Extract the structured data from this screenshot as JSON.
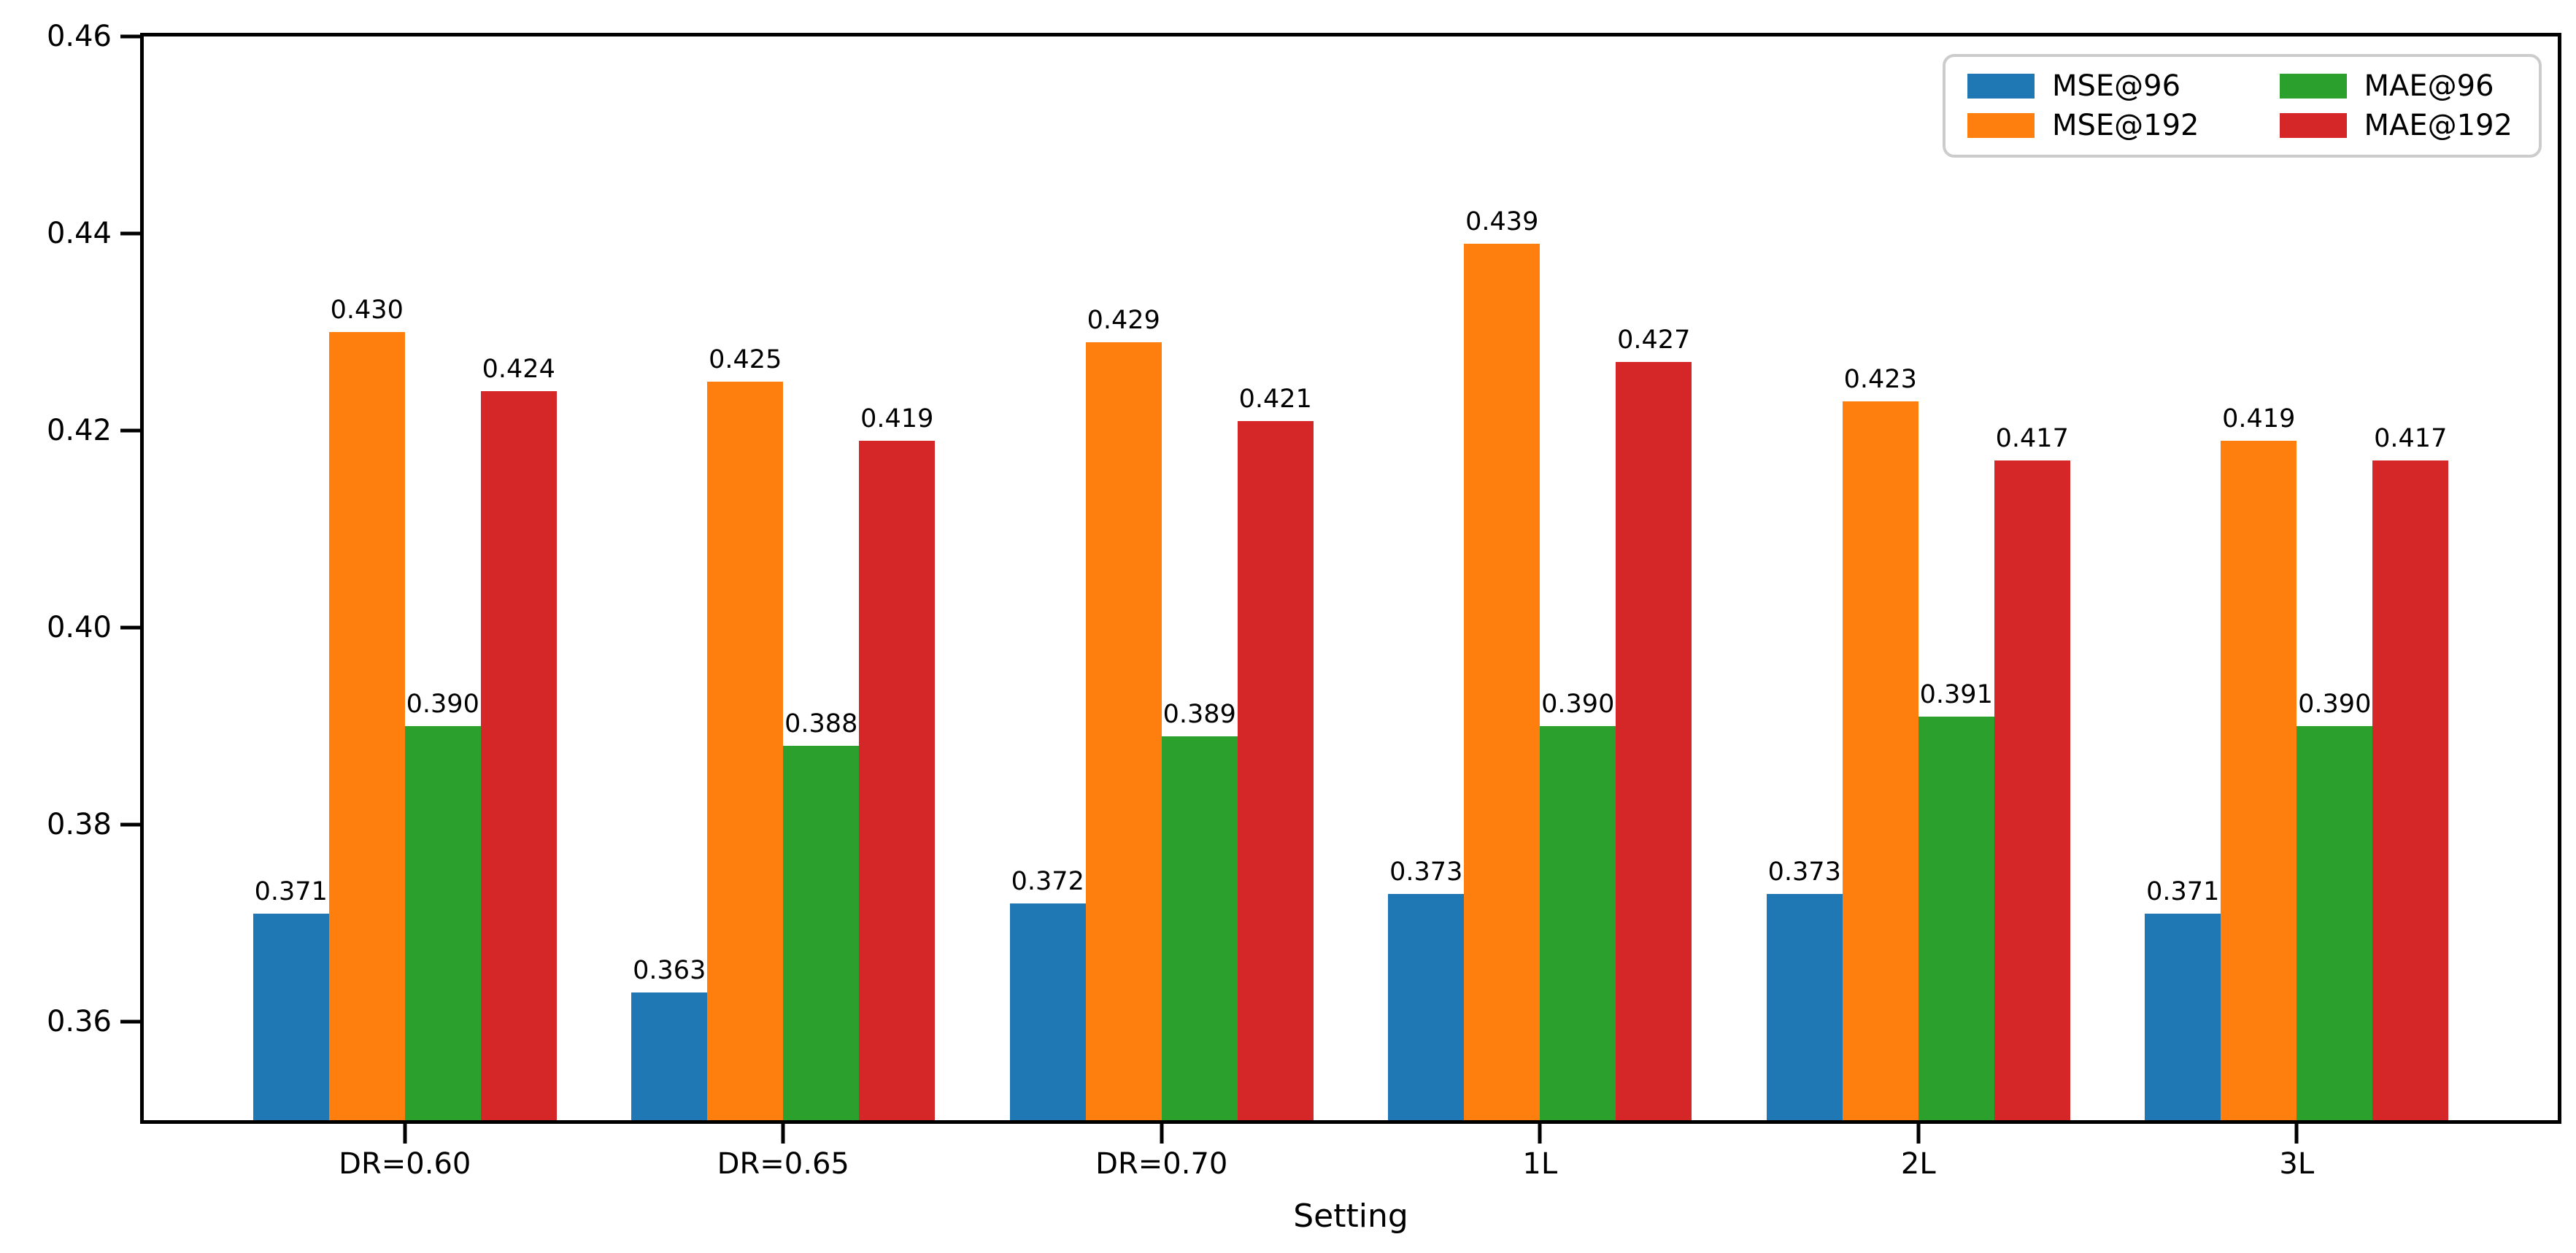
{
  "chart_data": {
    "type": "bar",
    "title": "",
    "xlabel": "Setting",
    "ylabel": "",
    "categories": [
      "DR=0.60",
      "DR=0.65",
      "DR=0.70",
      "1L",
      "2L",
      "3L"
    ],
    "series": [
      {
        "name": "MSE@96",
        "color": "#1f77b4",
        "values": [
          0.371,
          0.363,
          0.372,
          0.373,
          0.373,
          0.371
        ]
      },
      {
        "name": "MSE@192",
        "color": "#ff7f0e",
        "values": [
          0.43,
          0.425,
          0.429,
          0.439,
          0.423,
          0.419
        ]
      },
      {
        "name": "MAE@96",
        "color": "#2ca02c",
        "values": [
          0.39,
          0.388,
          0.389,
          0.39,
          0.391,
          0.39
        ]
      },
      {
        "name": "MAE@192",
        "color": "#d62728",
        "values": [
          0.424,
          0.419,
          0.421,
          0.427,
          0.417,
          0.417
        ]
      }
    ],
    "ylim": [
      0.35,
      0.46
    ],
    "y_ticks": [
      0.36,
      0.38,
      0.4,
      0.42,
      0.44,
      0.46
    ],
    "x_units_min": -0.69,
    "x_units_max": 5.69,
    "value_label_decimals": 3,
    "tick_label_decimals": 2,
    "grid": false,
    "legend_position": "upper right",
    "legend_ncol": 2,
    "legend_column_order": [
      0,
      2,
      1,
      3
    ],
    "axis_color": "#000000",
    "legend_border_color": "#cccccc",
    "background_color": "#ffffff"
  }
}
